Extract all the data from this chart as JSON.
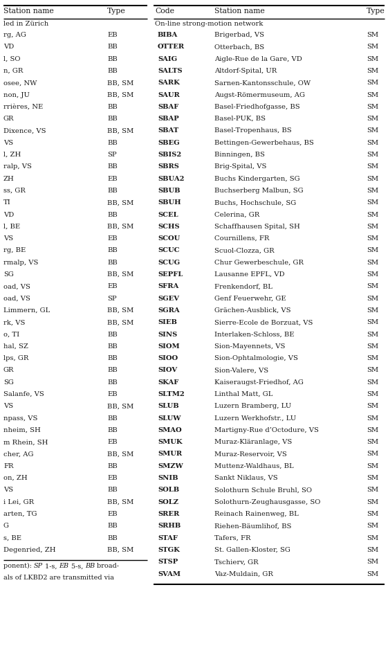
{
  "left_col_header": [
    "Station name",
    "Type"
  ],
  "right_col_header": [
    "Code",
    "Station name",
    "Type"
  ],
  "left_section_label": "led in Zürich",
  "right_section_label": "On-line strong-motion network",
  "left_rows": [
    [
      "rg, AG",
      "EB"
    ],
    [
      "VD",
      "BB"
    ],
    [
      "l, SO",
      "BB"
    ],
    [
      "n, GR",
      "BB"
    ],
    [
      "osee, NW",
      "BB, SM"
    ],
    [
      "non, JU",
      "BB, SM"
    ],
    [
      "rrières, NE",
      "BB"
    ],
    [
      "GR",
      "BB"
    ],
    [
      "Dixence, VS",
      "BB, SM"
    ],
    [
      "VS",
      "BB"
    ],
    [
      "l, ZH",
      "SP"
    ],
    [
      "ralp, VS",
      "BB"
    ],
    [
      "ZH",
      "EB"
    ],
    [
      "ss, GR",
      "BB"
    ],
    [
      "TI",
      "BB, SM"
    ],
    [
      "VD",
      "BB"
    ],
    [
      "l, BE",
      "BB, SM"
    ],
    [
      "VS",
      "EB"
    ],
    [
      "rg, BE",
      "BB"
    ],
    [
      "rmalp, VS",
      "BB"
    ],
    [
      "SG",
      "BB, SM"
    ],
    [
      "oad, VS",
      "EB"
    ],
    [
      "oad, VS",
      "SP"
    ],
    [
      "Limmern, GL",
      "BB, SM"
    ],
    [
      "rk, VS",
      "BB, SM"
    ],
    [
      "o, TI",
      "BB"
    ],
    [
      "hal, SZ",
      "BB"
    ],
    [
      "lps, GR",
      "BB"
    ],
    [
      "GR",
      "BB"
    ],
    [
      "SG",
      "BB"
    ],
    [
      "Salanfe, VS",
      "EB"
    ],
    [
      "VS",
      "BB, SM"
    ],
    [
      "npass, VS",
      "BB"
    ],
    [
      "nheim, SH",
      "BB"
    ],
    [
      "m Rhein, SH",
      "EB"
    ],
    [
      "cher, AG",
      "BB, SM"
    ],
    [
      "FR",
      "BB"
    ],
    [
      "on, ZH",
      "EB"
    ],
    [
      "VS",
      "BB"
    ],
    [
      "i Lei, GR",
      "BB, SM"
    ],
    [
      "arten, TG",
      "EB"
    ],
    [
      "G",
      "BB"
    ],
    [
      "s, BE",
      "BB"
    ],
    [
      "Degenried, ZH",
      "BB, SM"
    ]
  ],
  "right_rows": [
    [
      "BIBA",
      "Brigerbad, VS",
      "SM"
    ],
    [
      "OTTER",
      "Otterbach, BS",
      "SM"
    ],
    [
      "SAIG",
      "Aigle-Rue de la Gare, VD",
      "SM"
    ],
    [
      "SALTS",
      "Altdorf-Spital, UR",
      "SM"
    ],
    [
      "SARK",
      "Sarnen-Kantonsschule, OW",
      "SM"
    ],
    [
      "SAUR",
      "Augst-Römermuseum, AG",
      "SM"
    ],
    [
      "SBAF",
      "Basel-Friedhofgasse, BS",
      "SM"
    ],
    [
      "SBAP",
      "Basel-PUK, BS",
      "SM"
    ],
    [
      "SBAT",
      "Basel-Tropenhaus, BS",
      "SM"
    ],
    [
      "SBEG",
      "Bettingen-Gewerbehaus, BS",
      "SM"
    ],
    [
      "SBIS2",
      "Binningen, BS",
      "SM"
    ],
    [
      "SBRS",
      "Brig-Spital, VS",
      "SM"
    ],
    [
      "SBUA2",
      "Buchs Kindergarten, SG",
      "SM"
    ],
    [
      "SBUB",
      "Buchserberg Malbun, SG",
      "SM"
    ],
    [
      "SBUH",
      "Buchs, Hochschule, SG",
      "SM"
    ],
    [
      "SCEL",
      "Celerina, GR",
      "SM"
    ],
    [
      "SCHS",
      "Schaffhausen Spital, SH",
      "SM"
    ],
    [
      "SCOU",
      "Cournillens, FR",
      "SM"
    ],
    [
      "SCUC",
      "Scuol-Clozza, GR",
      "SM"
    ],
    [
      "SCUG",
      "Chur Gewerbeschule, GR",
      "SM"
    ],
    [
      "SEPFL",
      "Lausanne EPFL, VD",
      "SM"
    ],
    [
      "SFRA",
      "Frenkendorf, BL",
      "SM"
    ],
    [
      "SGEV",
      "Genf Feuerwehr, GE",
      "SM"
    ],
    [
      "SGRA",
      "Grächen-Ausblick, VS",
      "SM"
    ],
    [
      "SIEB",
      "Sierre-Ecole de Borzuat, VS",
      "SM"
    ],
    [
      "SINS",
      "Interlaken-Schloss, BE",
      "SM"
    ],
    [
      "SIOM",
      "Sion-Mayennets, VS",
      "SM"
    ],
    [
      "SIOO",
      "Sion-Ophtalmologie, VS",
      "SM"
    ],
    [
      "SIOV",
      "Sion-Valere, VS",
      "SM"
    ],
    [
      "SKAF",
      "Kaiseraugst-Friedhof, AG",
      "SM"
    ],
    [
      "SLTM2",
      "Linthal Matt, GL",
      "SM"
    ],
    [
      "SLUB",
      "Luzern Bramberg, LU",
      "SM"
    ],
    [
      "SLUW",
      "Luzern Werkhofstr., LU",
      "SM"
    ],
    [
      "SMAO",
      "Martigny-Rue d’Octodure, VS",
      "SM"
    ],
    [
      "SMUK",
      "Muraz-Kläranlage, VS",
      "SM"
    ],
    [
      "SMUR",
      "Muraz-Reservoir, VS",
      "SM"
    ],
    [
      "SMZW",
      "Muttenz-Waldhaus, BL",
      "SM"
    ],
    [
      "SNIB",
      "Sankt Niklaus, VS",
      "SM"
    ],
    [
      "SOLB",
      "Solothurn Schule Bruhl, SO",
      "SM"
    ],
    [
      "SOLZ",
      "Solothurn-Zeughausgasse, SO",
      "SM"
    ],
    [
      "SRER",
      "Reinach Rainenweg, BL",
      "SM"
    ],
    [
      "SRHB",
      "Riehen-Bäumlihof, BS",
      "SM"
    ],
    [
      "STAF",
      "Tafers, FR",
      "SM"
    ],
    [
      "STGK",
      "St. Gallen-Kloster, SG",
      "SM"
    ],
    [
      "STSP",
      "Tschierv, GR",
      "SM"
    ],
    [
      "SVAM",
      "Vaz-Muldain, GR",
      "SM"
    ]
  ],
  "footnote_line1": "ponent): ",
  "footnote_line1_italic": "SP",
  "footnote_line1_b": " 1-s, ",
  "footnote_line1_italic2": "EB",
  "footnote_line1_c": " 5-s, ",
  "footnote_line1_italic3": "BB",
  "footnote_line1_d": " broad-",
  "footnote_line2": "als of LKBD2 are transmitted via",
  "bg_color": "#ffffff",
  "text_color": "#1a1a1a",
  "font_size": 7.2,
  "header_font_size": 7.8
}
